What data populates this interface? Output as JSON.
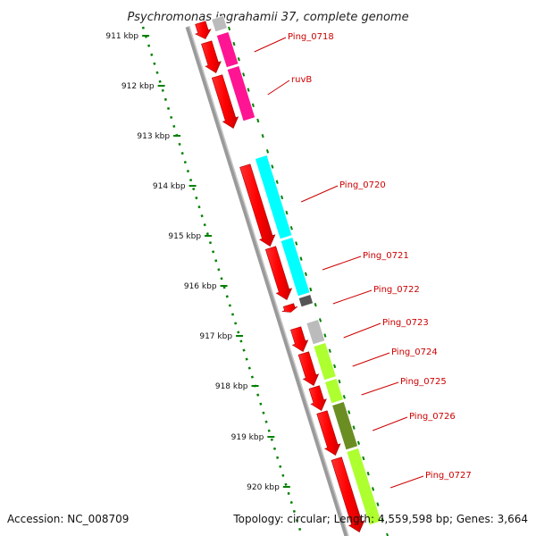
{
  "title": "Psychromonas ingrahamii 37, complete genome",
  "footer": {
    "accession": "Accession: NC_008709",
    "topology": "Topology: circular; Length: 4,559,598 bp; Genes: 3,664"
  },
  "colors": {
    "arrow": "#ff0000",
    "label": "#cc0000",
    "scale_dots": "#008000",
    "backbone": "#999999",
    "pink": "#ff1493",
    "cyan": "#00ffff",
    "gray": "#bbbbbb",
    "dark_gray": "#555555",
    "light_green": "#adff2f",
    "olive": "#6b8e23"
  },
  "scale_ticks": [
    "911 kbp",
    "912 kbp",
    "913 kbp",
    "914 kbp",
    "915 kbp",
    "916 kbp",
    "917 kbp",
    "918 kbp",
    "919 kbp",
    "920 kbp"
  ],
  "gene_labels": [
    "Ping_0718",
    "ruvB",
    "Ping_0720",
    "Ping_0721",
    "Ping_0722",
    "Ping_0723",
    "Ping_0724",
    "Ping_0725",
    "Ping_0726",
    "Ping_0727"
  ]
}
